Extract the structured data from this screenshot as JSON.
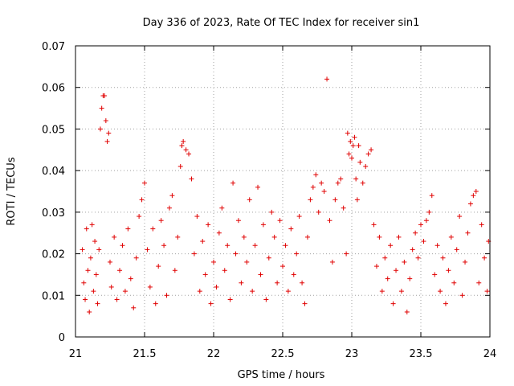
{
  "chart_data": {
    "type": "scatter",
    "title": "Day 336 of 2023, Rate Of TEC Index for receiver sin1",
    "xlabel": "GPS time / hours",
    "ylabel": "ROTI / TECUs",
    "xlim": [
      21,
      24
    ],
    "ylim": [
      0,
      0.07
    ],
    "x_ticks": [
      21,
      21.5,
      22,
      22.5,
      23,
      23.5,
      24
    ],
    "x_tick_labels": [
      "21",
      "21.5",
      "22",
      "22.5",
      "23",
      "23.5",
      "24"
    ],
    "y_ticks": [
      0,
      0.01,
      0.02,
      0.03,
      0.04,
      0.05,
      0.06,
      0.07
    ],
    "y_tick_labels": [
      "0",
      "0.01",
      "0.02",
      "0.03",
      "0.04",
      "0.05",
      "0.06",
      "0.07"
    ],
    "grid": true,
    "marker": "+",
    "color": "#e00000",
    "series": [
      {
        "points": [
          [
            21.05,
            0.021
          ],
          [
            21.06,
            0.013
          ],
          [
            21.07,
            0.009
          ],
          [
            21.08,
            0.026
          ],
          [
            21.09,
            0.016
          ],
          [
            21.1,
            0.006
          ],
          [
            21.11,
            0.019
          ],
          [
            21.12,
            0.027
          ],
          [
            21.13,
            0.011
          ],
          [
            21.14,
            0.023
          ],
          [
            21.15,
            0.015
          ],
          [
            21.16,
            0.008
          ],
          [
            21.17,
            0.021
          ],
          [
            21.18,
            0.05
          ],
          [
            21.19,
            0.055
          ],
          [
            21.2,
            0.058
          ],
          [
            21.21,
            0.058
          ],
          [
            21.22,
            0.052
          ],
          [
            21.23,
            0.047
          ],
          [
            21.24,
            0.049
          ],
          [
            21.25,
            0.018
          ],
          [
            21.26,
            0.012
          ],
          [
            21.28,
            0.024
          ],
          [
            21.3,
            0.009
          ],
          [
            21.32,
            0.016
          ],
          [
            21.34,
            0.022
          ],
          [
            21.36,
            0.011
          ],
          [
            21.38,
            0.026
          ],
          [
            21.4,
            0.014
          ],
          [
            21.42,
            0.007
          ],
          [
            21.44,
            0.019
          ],
          [
            21.46,
            0.029
          ],
          [
            21.48,
            0.033
          ],
          [
            21.5,
            0.037
          ],
          [
            21.52,
            0.021
          ],
          [
            21.54,
            0.012
          ],
          [
            21.56,
            0.026
          ],
          [
            21.58,
            0.008
          ],
          [
            21.6,
            0.017
          ],
          [
            21.62,
            0.028
          ],
          [
            21.64,
            0.022
          ],
          [
            21.66,
            0.01
          ],
          [
            21.68,
            0.031
          ],
          [
            21.7,
            0.034
          ],
          [
            21.72,
            0.016
          ],
          [
            21.74,
            0.024
          ],
          [
            21.76,
            0.041
          ],
          [
            21.77,
            0.046
          ],
          [
            21.78,
            0.047
          ],
          [
            21.8,
            0.045
          ],
          [
            21.82,
            0.044
          ],
          [
            21.84,
            0.038
          ],
          [
            21.86,
            0.02
          ],
          [
            21.88,
            0.029
          ],
          [
            21.9,
            0.011
          ],
          [
            21.92,
            0.023
          ],
          [
            21.94,
            0.015
          ],
          [
            21.96,
            0.027
          ],
          [
            21.98,
            0.008
          ],
          [
            22.0,
            0.018
          ],
          [
            22.02,
            0.012
          ],
          [
            22.04,
            0.025
          ],
          [
            22.06,
            0.031
          ],
          [
            22.08,
            0.016
          ],
          [
            22.1,
            0.022
          ],
          [
            22.12,
            0.009
          ],
          [
            22.14,
            0.037
          ],
          [
            22.16,
            0.02
          ],
          [
            22.18,
            0.028
          ],
          [
            22.2,
            0.013
          ],
          [
            22.22,
            0.024
          ],
          [
            22.24,
            0.018
          ],
          [
            22.26,
            0.033
          ],
          [
            22.28,
            0.011
          ],
          [
            22.3,
            0.022
          ],
          [
            22.32,
            0.036
          ],
          [
            22.34,
            0.015
          ],
          [
            22.36,
            0.027
          ],
          [
            22.38,
            0.009
          ],
          [
            22.4,
            0.019
          ],
          [
            22.42,
            0.03
          ],
          [
            22.44,
            0.024
          ],
          [
            22.46,
            0.013
          ],
          [
            22.48,
            0.028
          ],
          [
            22.5,
            0.017
          ],
          [
            22.52,
            0.022
          ],
          [
            22.54,
            0.011
          ],
          [
            22.56,
            0.026
          ],
          [
            22.58,
            0.015
          ],
          [
            22.6,
            0.02
          ],
          [
            22.62,
            0.029
          ],
          [
            22.64,
            0.013
          ],
          [
            22.66,
            0.008
          ],
          [
            22.68,
            0.024
          ],
          [
            22.7,
            0.033
          ],
          [
            22.72,
            0.036
          ],
          [
            22.74,
            0.039
          ],
          [
            22.76,
            0.03
          ],
          [
            22.78,
            0.037
          ],
          [
            22.8,
            0.035
          ],
          [
            22.82,
            0.062
          ],
          [
            22.84,
            0.028
          ],
          [
            22.86,
            0.018
          ],
          [
            22.88,
            0.033
          ],
          [
            22.9,
            0.037
          ],
          [
            22.92,
            0.038
          ],
          [
            22.94,
            0.031
          ],
          [
            22.96,
            0.02
          ],
          [
            22.97,
            0.049
          ],
          [
            22.98,
            0.044
          ],
          [
            22.99,
            0.047
          ],
          [
            23.0,
            0.043
          ],
          [
            23.01,
            0.046
          ],
          [
            23.02,
            0.048
          ],
          [
            23.03,
            0.038
          ],
          [
            23.04,
            0.033
          ],
          [
            23.05,
            0.046
          ],
          [
            23.06,
            0.042
          ],
          [
            23.08,
            0.037
          ],
          [
            23.1,
            0.041
          ],
          [
            23.12,
            0.044
          ],
          [
            23.14,
            0.045
          ],
          [
            23.16,
            0.027
          ],
          [
            23.18,
            0.017
          ],
          [
            23.2,
            0.024
          ],
          [
            23.22,
            0.011
          ],
          [
            23.24,
            0.019
          ],
          [
            23.26,
            0.014
          ],
          [
            23.28,
            0.022
          ],
          [
            23.3,
            0.008
          ],
          [
            23.32,
            0.016
          ],
          [
            23.34,
            0.024
          ],
          [
            23.36,
            0.011
          ],
          [
            23.38,
            0.018
          ],
          [
            23.4,
            0.006
          ],
          [
            23.42,
            0.014
          ],
          [
            23.44,
            0.021
          ],
          [
            23.46,
            0.025
          ],
          [
            23.48,
            0.019
          ],
          [
            23.5,
            0.027
          ],
          [
            23.52,
            0.023
          ],
          [
            23.54,
            0.028
          ],
          [
            23.56,
            0.03
          ],
          [
            23.58,
            0.034
          ],
          [
            23.6,
            0.015
          ],
          [
            23.62,
            0.022
          ],
          [
            23.64,
            0.011
          ],
          [
            23.66,
            0.019
          ],
          [
            23.68,
            0.008
          ],
          [
            23.7,
            0.016
          ],
          [
            23.72,
            0.024
          ],
          [
            23.74,
            0.013
          ],
          [
            23.76,
            0.021
          ],
          [
            23.78,
            0.029
          ],
          [
            23.8,
            0.01
          ],
          [
            23.82,
            0.018
          ],
          [
            23.84,
            0.025
          ],
          [
            23.86,
            0.032
          ],
          [
            23.88,
            0.034
          ],
          [
            23.9,
            0.035
          ],
          [
            23.92,
            0.013
          ],
          [
            23.94,
            0.027
          ],
          [
            23.96,
            0.019
          ],
          [
            23.98,
            0.011
          ],
          [
            23.99,
            0.023
          ]
        ]
      }
    ]
  }
}
